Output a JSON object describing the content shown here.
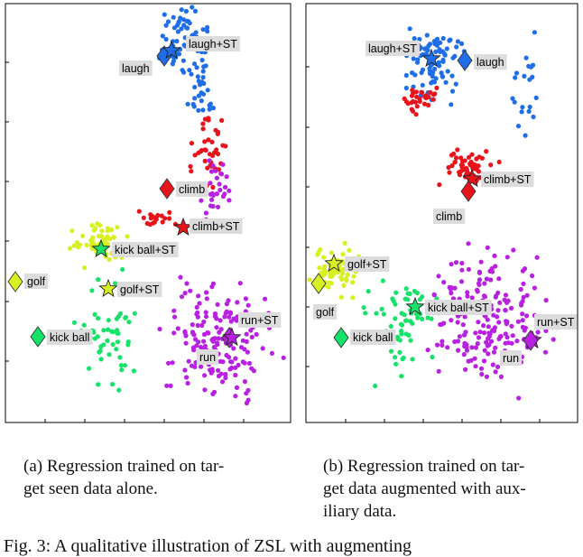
{
  "figure": {
    "colors": {
      "laugh": "#1f6ee8",
      "climb": "#e8141c",
      "golf": "#d8f021",
      "kick_ball": "#16e26a",
      "run": "#b820e2",
      "label_bg": "#dcdcdc",
      "axis": "#000000"
    },
    "panels": [
      {
        "id": "a",
        "labels": {
          "laugh_st": "laugh+ST",
          "laugh": "laugh",
          "climb": "climb",
          "climb_st": "climb+ST",
          "kick_ball_st": "kick ball+ST",
          "golf": "golf",
          "golf_st": "golf+ST",
          "kick_ball": "kick ball",
          "run_st": "run+ST",
          "run": "run"
        }
      },
      {
        "id": "b",
        "labels": {
          "laugh_st": "laugh+ST",
          "laugh": "laugh",
          "climb_st": "climb+ST",
          "climb": "climb",
          "golf_st": "golf+ST",
          "golf": "golf",
          "kick_ball_st": "kick ball+ST",
          "kick_ball": "kick ball",
          "run_st": "run+ST",
          "run": "run"
        }
      }
    ]
  },
  "captions": {
    "a": [
      "(a) Regression trained on tar-",
      "get seen data alone."
    ],
    "b": [
      "(b) Regression trained on tar-",
      "get data augmented with aux-",
      "iliary data."
    ]
  },
  "figure_note": "Fig. 3: A qualitative illustration of ZSL with augmenting"
}
